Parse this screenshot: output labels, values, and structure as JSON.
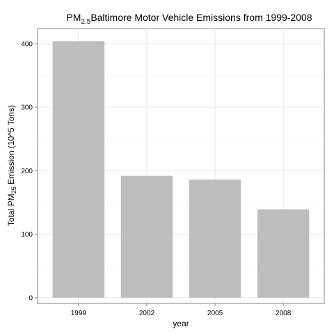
{
  "chart_data": {
    "type": "bar",
    "title_main": "PM",
    "title_sub": "2.5",
    "title_rest": "Baltimore Motor Vehicle Emissions from 1999-2008",
    "xlabel": "year",
    "ylabel_pre": "Total PM",
    "ylabel_sub": "25",
    "ylabel_post": " Emission (10^5 Tons)",
    "categories": [
      "1999",
      "2002",
      "2005",
      "2008"
    ],
    "values": [
      404,
      192,
      186,
      139
    ],
    "ylim": [
      -9,
      424
    ],
    "yticks": [
      0,
      100,
      200,
      300,
      400
    ],
    "ytick_labels": [
      "0",
      "100",
      "200",
      "300",
      "400"
    ],
    "bar_color": "#bebebe",
    "grid": true
  }
}
